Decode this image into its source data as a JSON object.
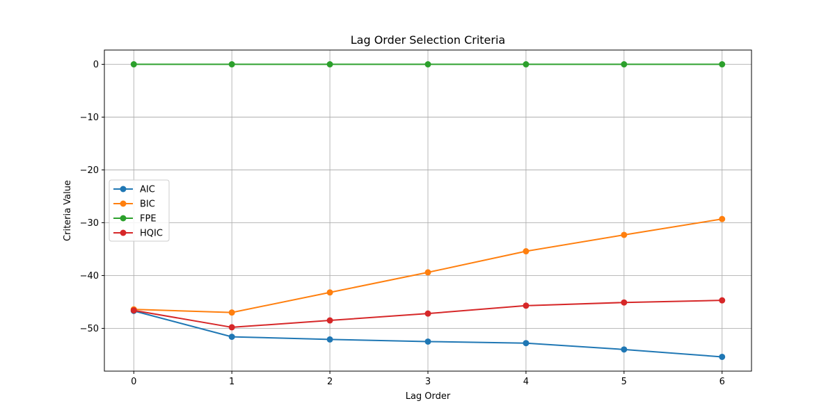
{
  "chart_data": {
    "type": "line",
    "title": "Lag Order Selection Criteria",
    "xlabel": "Lag Order",
    "ylabel": "Criteria Value",
    "x": [
      0,
      1,
      2,
      3,
      4,
      5,
      6
    ],
    "xticks": [
      "0",
      "1",
      "2",
      "3",
      "4",
      "5",
      "6"
    ],
    "yticks": [
      0,
      -10,
      -20,
      -30,
      -40,
      -50
    ],
    "ytick_labels": [
      "0",
      "−10",
      "−20",
      "−30",
      "−40",
      "−50"
    ],
    "xlim": [
      -0.3,
      6.3
    ],
    "ylim": [
      -58.1,
      2.7
    ],
    "grid": true,
    "legend_position": "center-left",
    "series": [
      {
        "name": "AIC",
        "color": "#1f77b4",
        "values": [
          -46.7,
          -51.6,
          -52.1,
          -52.5,
          -52.8,
          -54.0,
          -55.4
        ]
      },
      {
        "name": "BIC",
        "color": "#ff7f0e",
        "values": [
          -46.4,
          -47.0,
          -43.2,
          -39.4,
          -35.4,
          -32.3,
          -29.3
        ]
      },
      {
        "name": "FPE",
        "color": "#2ca02c",
        "values": [
          0.0,
          0.0,
          0.0,
          0.0,
          0.0,
          0.0,
          0.0
        ]
      },
      {
        "name": "HQIC",
        "color": "#d62728",
        "values": [
          -46.6,
          -49.8,
          -48.5,
          -47.2,
          -45.7,
          -45.1,
          -44.7
        ]
      }
    ]
  }
}
